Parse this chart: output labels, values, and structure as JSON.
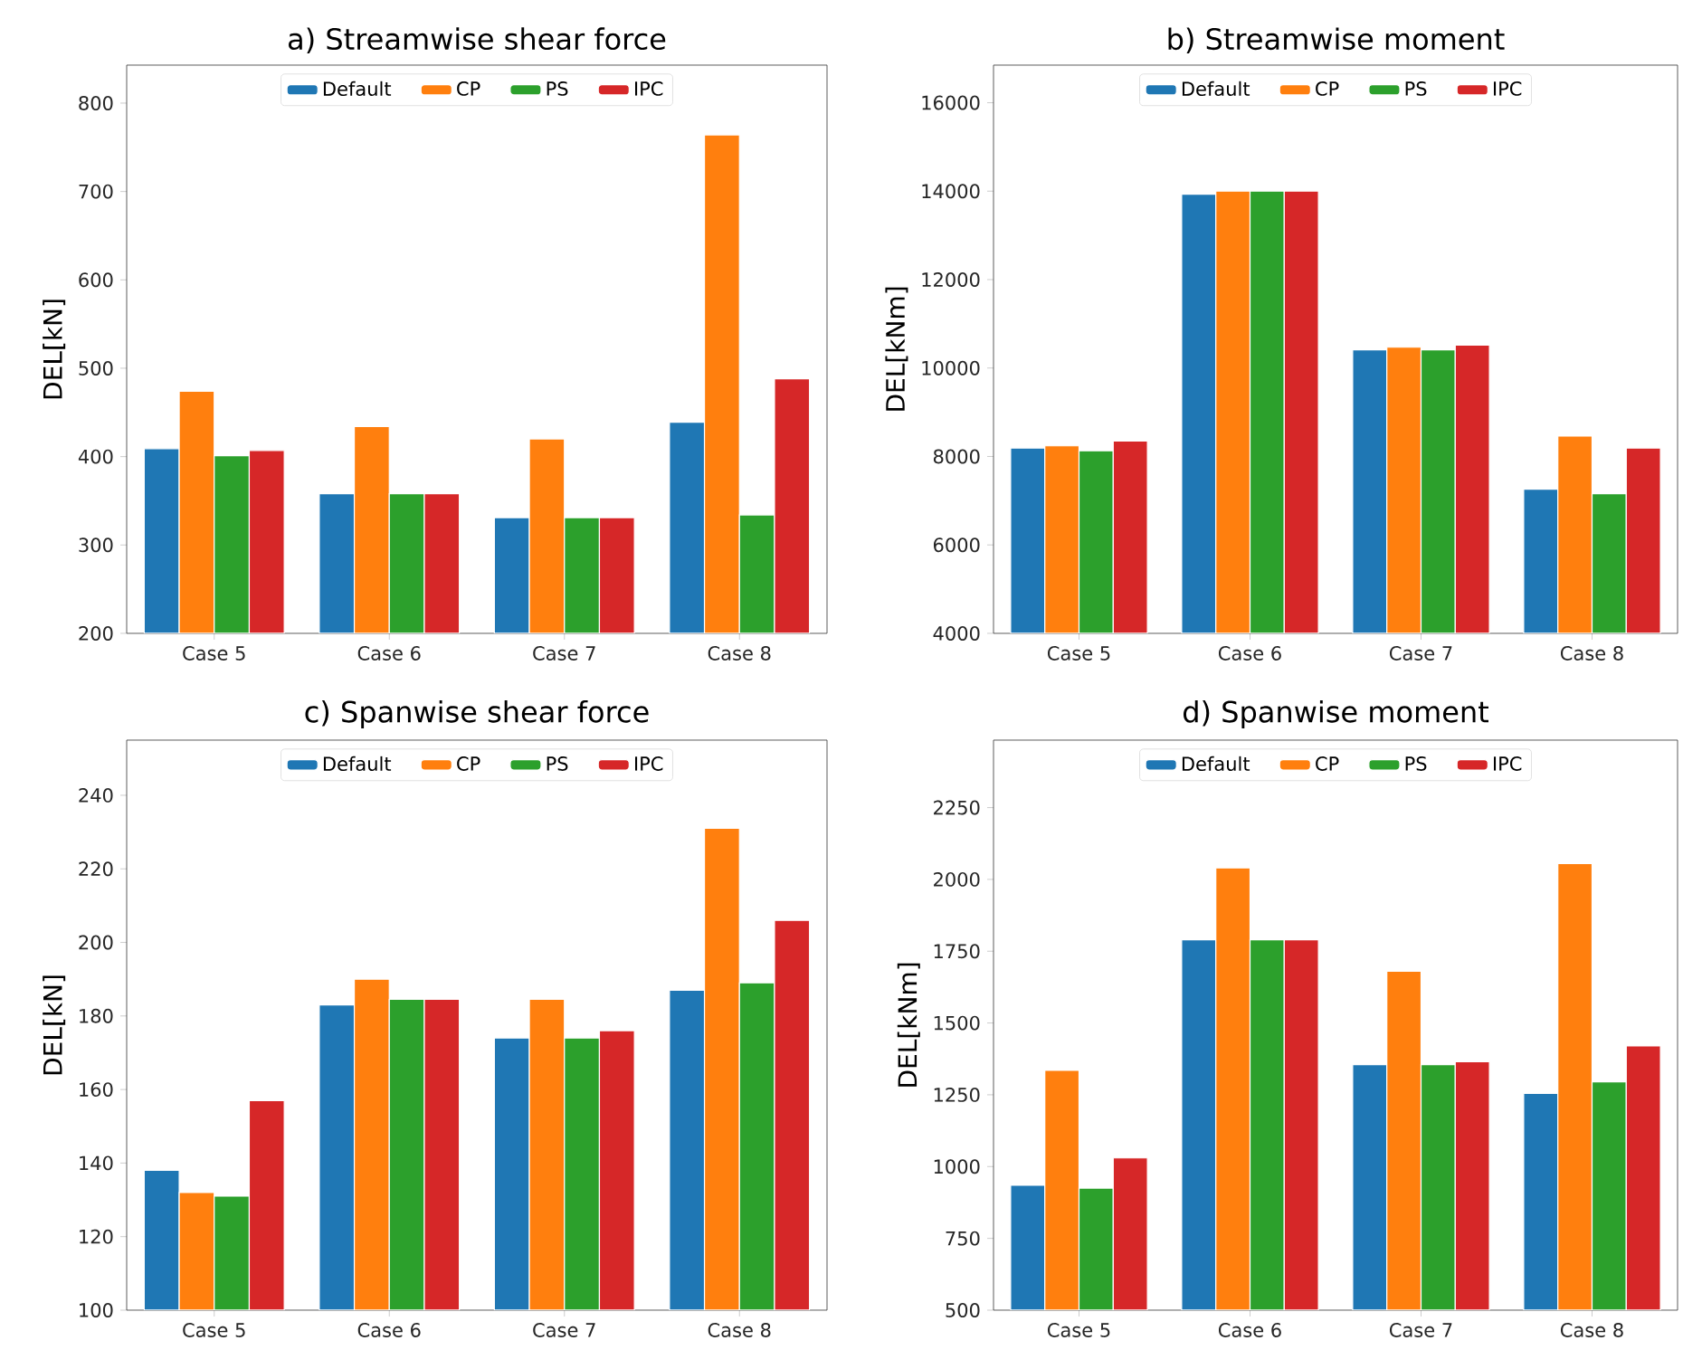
{
  "chart_data": [
    {
      "type": "bar",
      "title": "a) Streamwise shear force",
      "ylabel": "DEL[kN]",
      "categories": [
        "Case 5",
        "Case 6",
        "Case 7",
        "Case 8"
      ],
      "ylim": [
        200,
        843
      ],
      "yticks": [
        200,
        300,
        400,
        500,
        600,
        700,
        800
      ],
      "legend": "top",
      "series": [
        {
          "name": "Default",
          "color": "#1f77b4",
          "values": [
            409,
            358,
            331,
            439
          ]
        },
        {
          "name": "CP",
          "color": "#ff7f0e",
          "values": [
            474,
            434,
            420,
            764
          ]
        },
        {
          "name": "PS",
          "color": "#2ca02c",
          "values": [
            401,
            358,
            331,
            334
          ]
        },
        {
          "name": "IPC",
          "color": "#d62728",
          "values": [
            407,
            358,
            331,
            488
          ]
        }
      ]
    },
    {
      "type": "bar",
      "title": "b) Streamwise moment",
      "ylabel": "DEL[kNm]",
      "categories": [
        "Case 5",
        "Case 6",
        "Case 7",
        "Case 8"
      ],
      "ylim": [
        4000,
        16850
      ],
      "yticks": [
        4000,
        6000,
        8000,
        10000,
        12000,
        14000,
        16000
      ],
      "legend": "top",
      "series": [
        {
          "name": "Default",
          "color": "#1f77b4",
          "values": [
            8190,
            13930,
            10410,
            7260
          ]
        },
        {
          "name": "CP",
          "color": "#ff7f0e",
          "values": [
            8240,
            14000,
            10470,
            8460
          ]
        },
        {
          "name": "PS",
          "color": "#2ca02c",
          "values": [
            8130,
            14000,
            10410,
            7160
          ]
        },
        {
          "name": "IPC",
          "color": "#d62728",
          "values": [
            8350,
            14000,
            10520,
            8190
          ]
        }
      ]
    },
    {
      "type": "bar",
      "title": "c) Spanwise shear force",
      "ylabel": "DEL[kN]",
      "categories": [
        "Case 5",
        "Case 6",
        "Case 7",
        "Case 8"
      ],
      "ylim": [
        100,
        255
      ],
      "yticks": [
        100,
        120,
        140,
        160,
        180,
        200,
        220,
        240
      ],
      "legend": "top",
      "series": [
        {
          "name": "Default",
          "color": "#1f77b4",
          "values": [
            138,
            183,
            174,
            187
          ]
        },
        {
          "name": "CP",
          "color": "#ff7f0e",
          "values": [
            132,
            190,
            184.5,
            231
          ]
        },
        {
          "name": "PS",
          "color": "#2ca02c",
          "values": [
            131,
            184.5,
            174,
            189
          ]
        },
        {
          "name": "IPC",
          "color": "#d62728",
          "values": [
            157,
            184.5,
            176,
            206
          ]
        }
      ]
    },
    {
      "type": "bar",
      "title": "d) Spanwise moment",
      "ylabel": "DEL[kNm]",
      "categories": [
        "Case 5",
        "Case 6",
        "Case 7",
        "Case 8"
      ],
      "ylim": [
        500,
        2485
      ],
      "yticks": [
        500,
        750,
        1000,
        1250,
        1500,
        1750,
        2000,
        2250
      ],
      "legend": "top",
      "series": [
        {
          "name": "Default",
          "color": "#1f77b4",
          "values": [
            935,
            1790,
            1355,
            1255
          ]
        },
        {
          "name": "CP",
          "color": "#ff7f0e",
          "values": [
            1335,
            2040,
            1680,
            2055
          ]
        },
        {
          "name": "PS",
          "color": "#2ca02c",
          "values": [
            925,
            1790,
            1355,
            1295
          ]
        },
        {
          "name": "IPC",
          "color": "#d62728",
          "values": [
            1030,
            1790,
            1365,
            1420
          ]
        }
      ]
    }
  ]
}
